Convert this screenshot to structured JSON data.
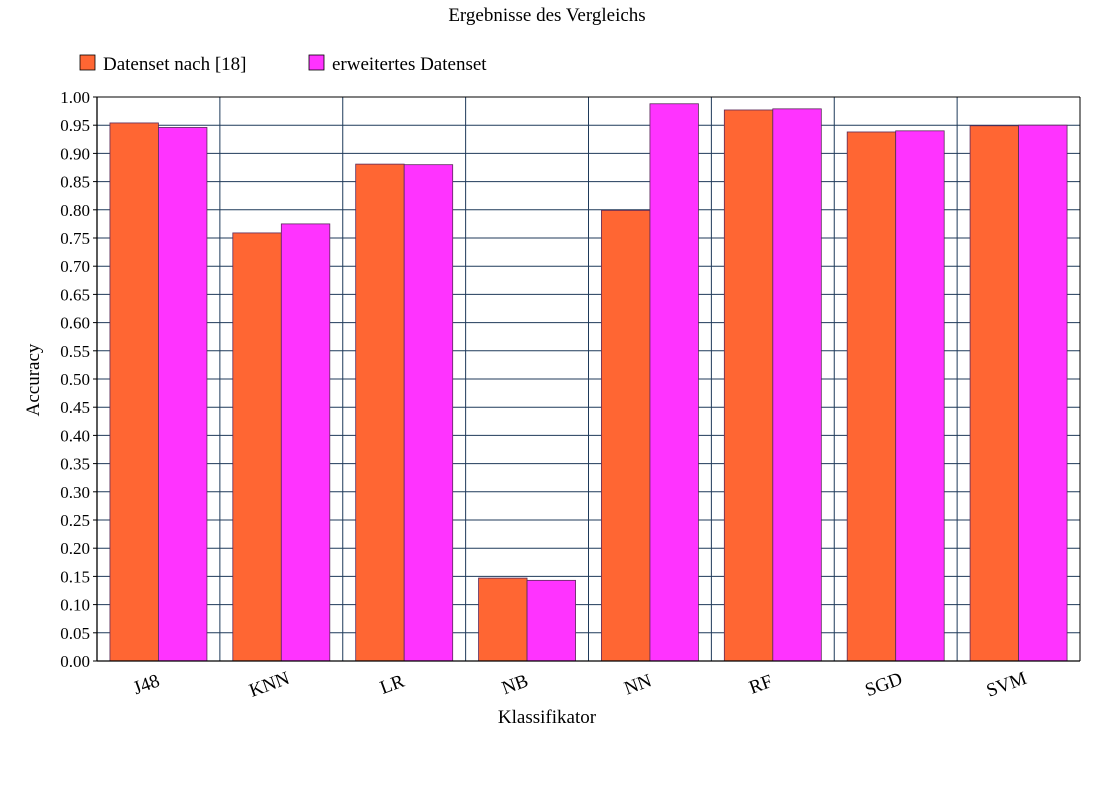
{
  "chart_data": {
    "type": "bar",
    "title": "Ergebnisse des Vergleichs",
    "xlabel": "Klassifikator",
    "ylabel": "Accuracy",
    "categories": [
      "J48",
      "KNN",
      "LR",
      "NB",
      "NN",
      "RF",
      "SGD",
      "SVM"
    ],
    "series": [
      {
        "name": "Datenset nach [18]",
        "color": "#ff6633",
        "values": [
          0.954,
          0.759,
          0.881,
          0.147,
          0.799,
          0.977,
          0.938,
          0.949
        ]
      },
      {
        "name": "erweitertes Datenset",
        "color": "#ff33ff",
        "values": [
          0.946,
          0.775,
          0.88,
          0.143,
          0.988,
          0.979,
          0.94,
          0.95
        ]
      }
    ],
    "ylim": [
      0,
      1.0
    ],
    "ytick_step": 0.05,
    "ytick_labels": [
      "0.00",
      "0.05",
      "0.10",
      "0.15",
      "0.20",
      "0.25",
      "0.30",
      "0.35",
      "0.40",
      "0.45",
      "0.50",
      "0.55",
      "0.60",
      "0.65",
      "0.70",
      "0.75",
      "0.80",
      "0.85",
      "0.90",
      "0.95",
      "1.00"
    ],
    "grid": true,
    "legend_position": "top-left"
  }
}
